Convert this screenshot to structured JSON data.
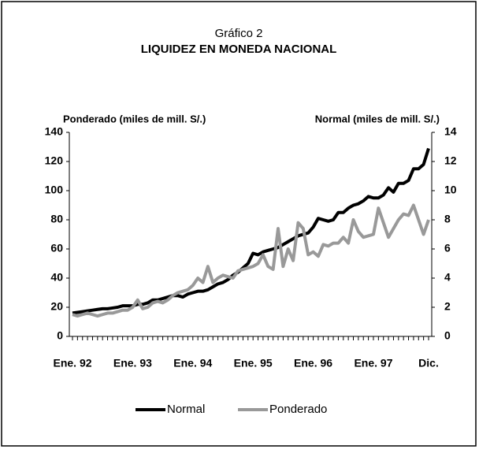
{
  "chart_data": {
    "type": "line",
    "subtitle": "Gráfico 2",
    "title": "LIQUIDEZ EN MONEDA NACIONAL",
    "ylabel": "Ponderado (miles de mill. S/.)",
    "y2label": "Normal (miles de mill. S/.)",
    "categories": [
      "Ene. 92",
      null,
      null,
      null,
      null,
      null,
      null,
      null,
      null,
      null,
      null,
      null,
      "Ene. 93",
      null,
      null,
      null,
      null,
      null,
      null,
      null,
      null,
      null,
      null,
      null,
      "Ene. 94",
      null,
      null,
      null,
      null,
      null,
      null,
      null,
      null,
      null,
      null,
      null,
      "Ene. 95",
      null,
      null,
      null,
      null,
      null,
      null,
      null,
      null,
      null,
      null,
      null,
      "Ene. 96",
      null,
      null,
      null,
      null,
      null,
      null,
      null,
      null,
      null,
      null,
      null,
      "Ene. 97",
      null,
      null,
      null,
      null,
      null,
      null,
      null,
      null,
      null,
      null,
      "Dic."
    ],
    "series": [
      {
        "name": "Normal",
        "color": "#000000",
        "axis": "y2",
        "values": [
          1.6,
          1.65,
          1.7,
          1.75,
          1.8,
          1.85,
          1.9,
          1.9,
          1.95,
          2.0,
          2.1,
          2.1,
          2.1,
          2.2,
          2.2,
          2.3,
          2.5,
          2.5,
          2.6,
          2.7,
          2.8,
          2.8,
          2.7,
          2.9,
          3.0,
          3.1,
          3.1,
          3.2,
          3.4,
          3.6,
          3.7,
          3.9,
          4.2,
          4.4,
          4.7,
          5.0,
          5.7,
          5.6,
          5.8,
          5.9,
          6.0,
          6.1,
          6.3,
          6.5,
          6.7,
          6.9,
          7.0,
          7.1,
          7.5,
          8.1,
          8.0,
          7.9,
          8.0,
          8.5,
          8.5,
          8.8,
          9.0,
          9.1,
          9.3,
          9.6,
          9.5,
          9.5,
          9.7,
          10.2,
          9.9,
          10.5,
          10.5,
          10.7,
          11.5,
          11.5,
          11.8,
          12.9
        ]
      },
      {
        "name": "Ponderado",
        "color": "#999999",
        "values": [
          15,
          14,
          15,
          16,
          15,
          14,
          15,
          16,
          16,
          17,
          18,
          18,
          20,
          25,
          19,
          20,
          23,
          24,
          23,
          25,
          28,
          30,
          31,
          32,
          35,
          40,
          37,
          48,
          37,
          40,
          42,
          41,
          40,
          45,
          46,
          47,
          48,
          50,
          56,
          48,
          46,
          74,
          48,
          60,
          52,
          78,
          74,
          56,
          58,
          55,
          63,
          62,
          64,
          64,
          68,
          64,
          80,
          72,
          68,
          69,
          70,
          88,
          78,
          68,
          74,
          80,
          84,
          83,
          90,
          80,
          70,
          80
        ]
      }
    ],
    "ylim": [
      0,
      140
    ],
    "yticks": [
      0,
      20,
      40,
      60,
      80,
      100,
      120,
      140
    ],
    "y2lim": [
      0,
      14
    ],
    "y2ticks": [
      0,
      2,
      4,
      6,
      8,
      10,
      12,
      14
    ],
    "legend": "bottom"
  }
}
